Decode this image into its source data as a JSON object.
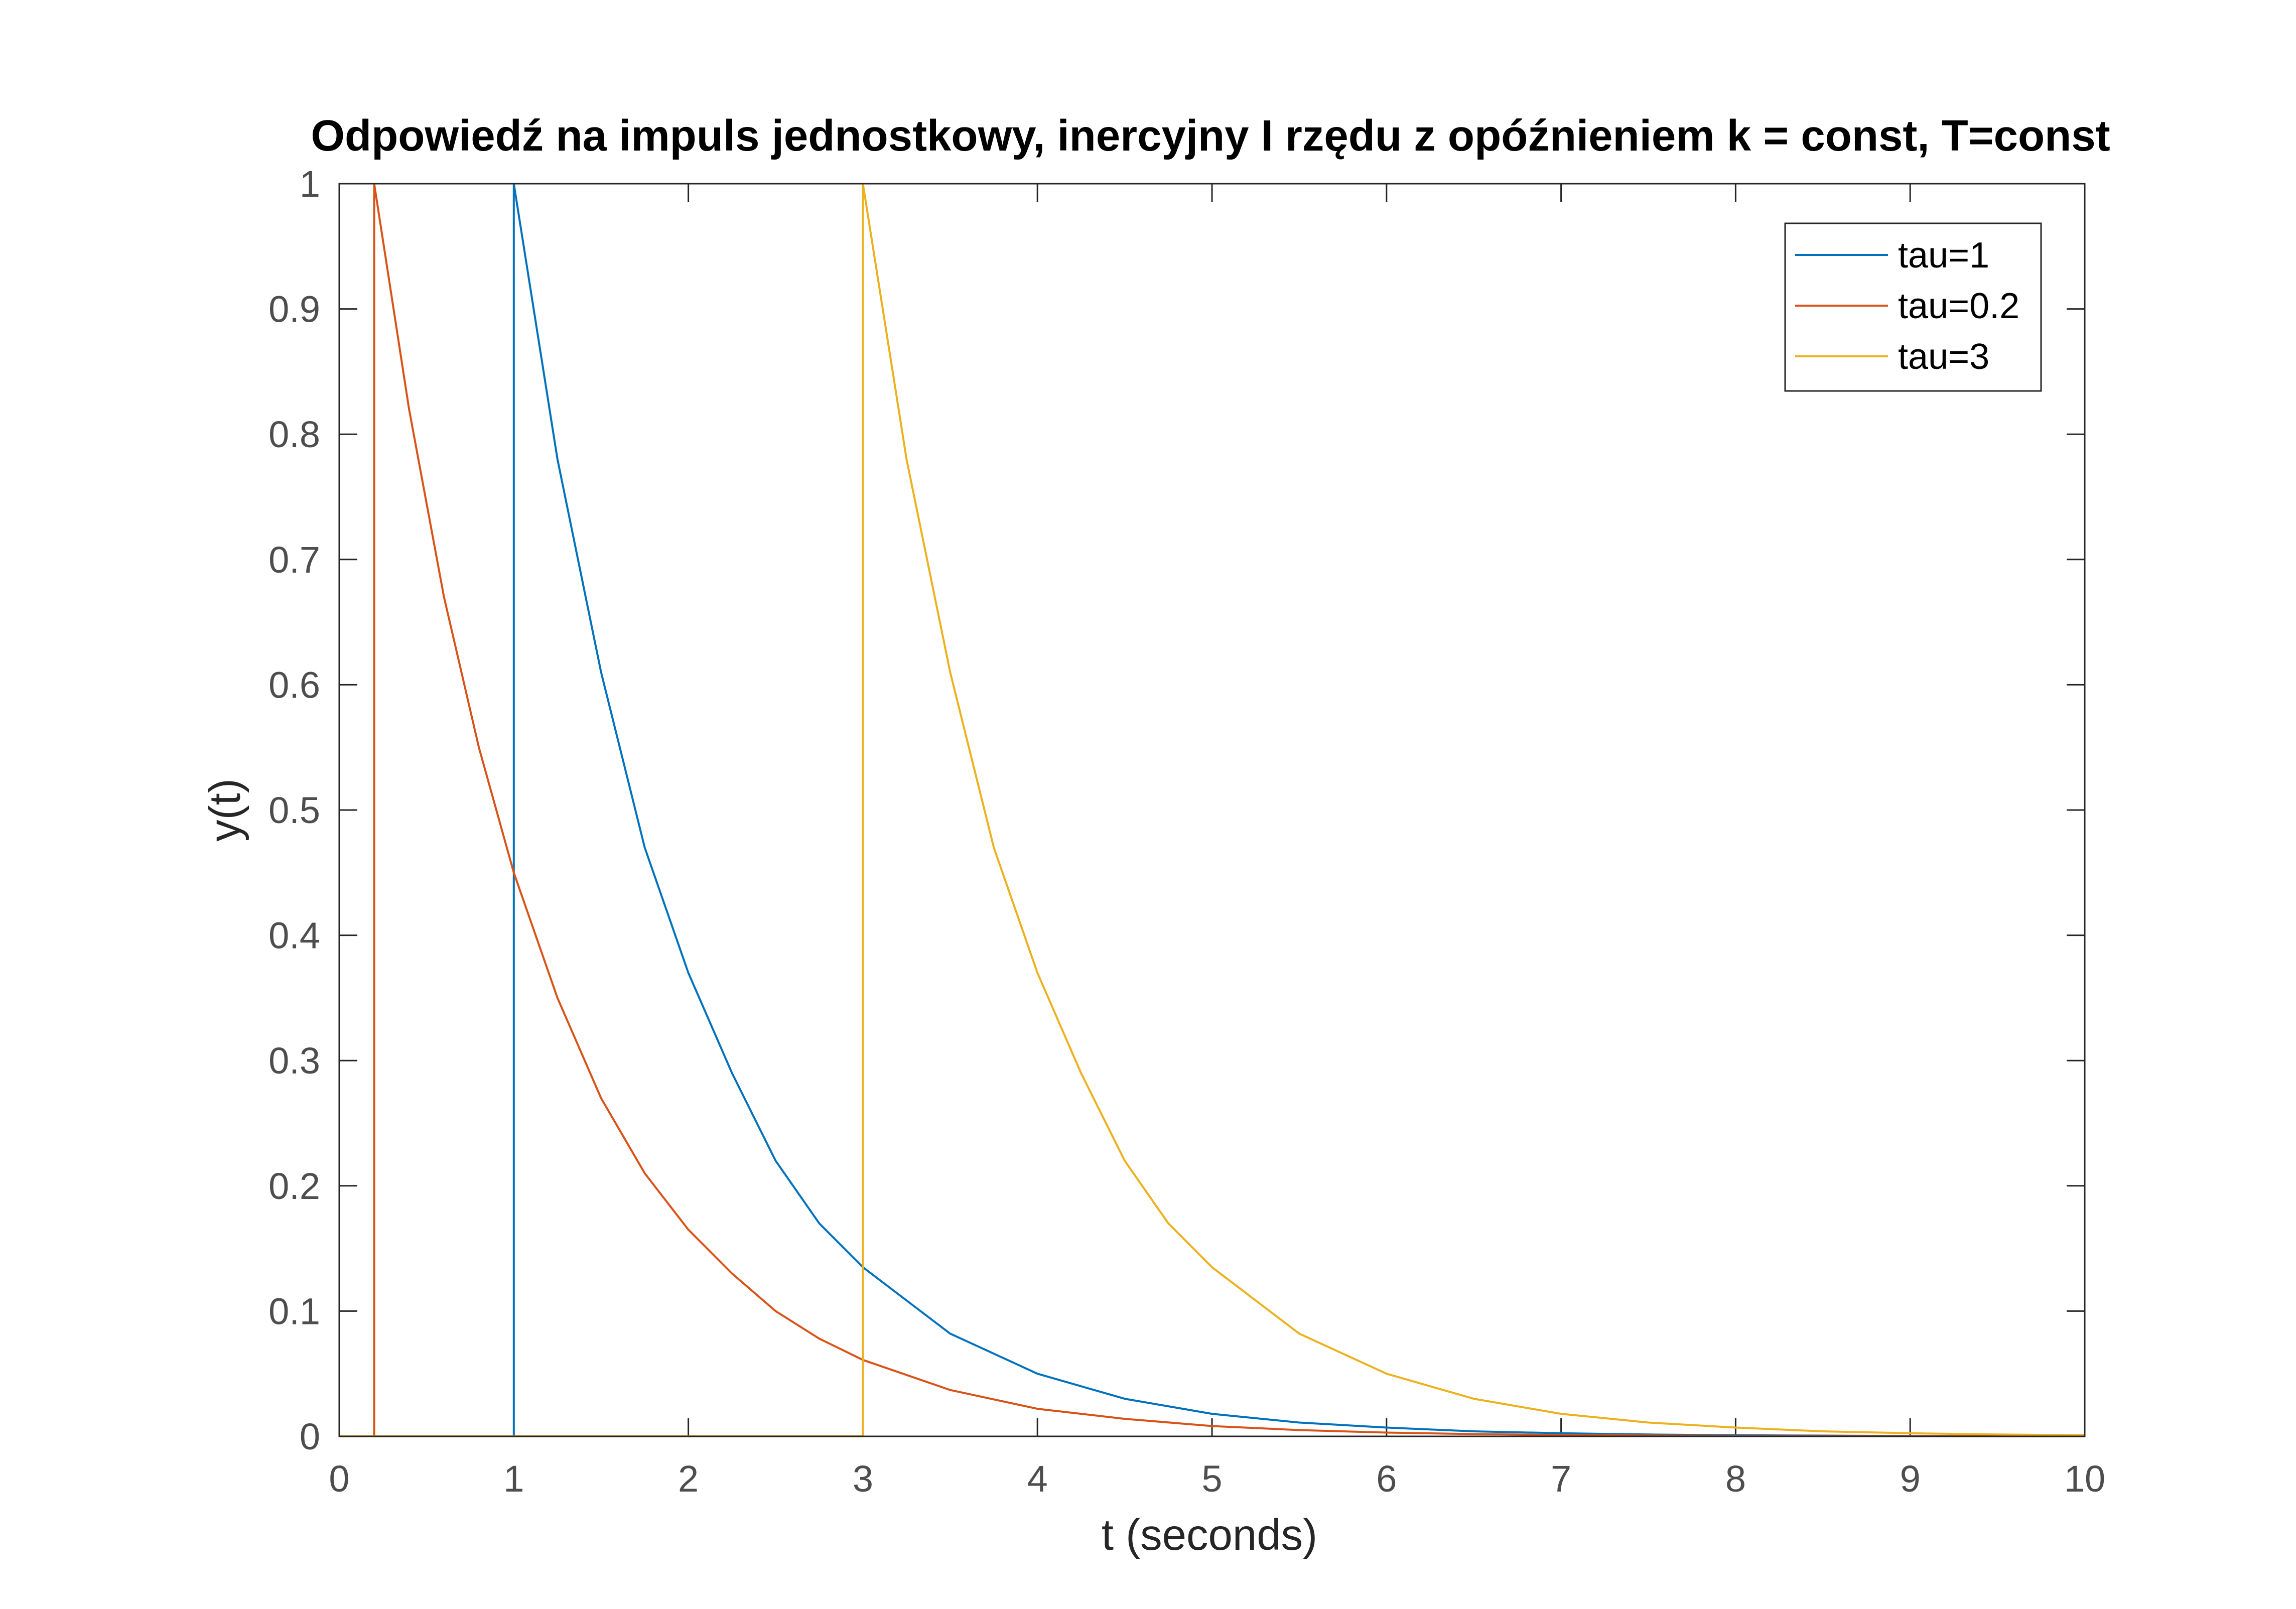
{
  "colors": {
    "axis": "#262626",
    "tick_label": "#4d4d4d",
    "background": "#ffffff"
  },
  "chart_data": {
    "type": "line",
    "title": "Odpowiedź na impuls jednostkowy, inercyjny I rzędu z opóźnieniem k = const, T=const",
    "xlabel": "t (seconds)",
    "ylabel": "y(t)",
    "xlim": [
      0,
      10
    ],
    "ylim": [
      0,
      1
    ],
    "xticks": [
      0,
      1,
      2,
      3,
      4,
      5,
      6,
      7,
      8,
      9,
      10
    ],
    "xtick_labels": [
      "0",
      "1",
      "2",
      "3",
      "4",
      "5",
      "6",
      "7",
      "8",
      "9",
      "10"
    ],
    "yticks": [
      0,
      0.1,
      0.2,
      0.3,
      0.4,
      0.5,
      0.6,
      0.7,
      0.8,
      0.9,
      1
    ],
    "ytick_labels": [
      "0",
      "0.1",
      "0.2",
      "0.3",
      "0.4",
      "0.5",
      "0.6",
      "0.7",
      "0.8",
      "0.9",
      "1"
    ],
    "grid": false,
    "legend_position": "top-right",
    "series": [
      {
        "name": "tau=1",
        "color": "#0072bd",
        "x": [
          0,
          0.99,
          1.0,
          1.0,
          1.25,
          1.5,
          1.75,
          2.0,
          2.25,
          2.5,
          2.75,
          3.0,
          3.5,
          4.0,
          4.5,
          5.0,
          5.5,
          6.0,
          6.5,
          7.0,
          7.5,
          8.0,
          8.5,
          9.0,
          9.5,
          10.0
        ],
        "y": [
          0,
          0,
          0,
          1.0,
          0.78,
          0.61,
          0.47,
          0.37,
          0.29,
          0.22,
          0.17,
          0.135,
          0.082,
          0.05,
          0.03,
          0.018,
          0.011,
          0.007,
          0.004,
          0.0025,
          0.0015,
          0.0009,
          0.0006,
          0.0003,
          0.0002,
          0.0001
        ]
      },
      {
        "name": "tau=0.2",
        "color": "#d95319",
        "x": [
          0,
          0.19,
          0.2,
          0.2,
          0.4,
          0.6,
          0.8,
          1.0,
          1.25,
          1.5,
          1.75,
          2.0,
          2.25,
          2.5,
          2.75,
          3.0,
          3.5,
          4.0,
          4.5,
          5.0,
          5.5,
          6.0,
          6.5,
          7.0,
          7.5,
          8.0,
          9.0,
          10.0
        ],
        "y": [
          0,
          0,
          0,
          1.0,
          0.82,
          0.67,
          0.55,
          0.45,
          0.35,
          0.27,
          0.21,
          0.165,
          0.13,
          0.1,
          0.078,
          0.061,
          0.037,
          0.022,
          0.014,
          0.0082,
          0.005,
          0.003,
          0.0018,
          0.0011,
          0.0007,
          0.0004,
          0.00015,
          5e-05
        ]
      },
      {
        "name": "tau=3",
        "color": "#edb120",
        "x": [
          0,
          2.99,
          3.0,
          3.0,
          3.25,
          3.5,
          3.75,
          4.0,
          4.25,
          4.5,
          4.75,
          5.0,
          5.5,
          6.0,
          6.5,
          7.0,
          7.5,
          8.0,
          8.5,
          9.0,
          9.5,
          10.0
        ],
        "y": [
          0,
          0,
          0,
          1.0,
          0.78,
          0.61,
          0.47,
          0.37,
          0.29,
          0.22,
          0.17,
          0.135,
          0.082,
          0.05,
          0.03,
          0.018,
          0.011,
          0.007,
          0.004,
          0.0025,
          0.0015,
          0.0009
        ]
      }
    ]
  }
}
